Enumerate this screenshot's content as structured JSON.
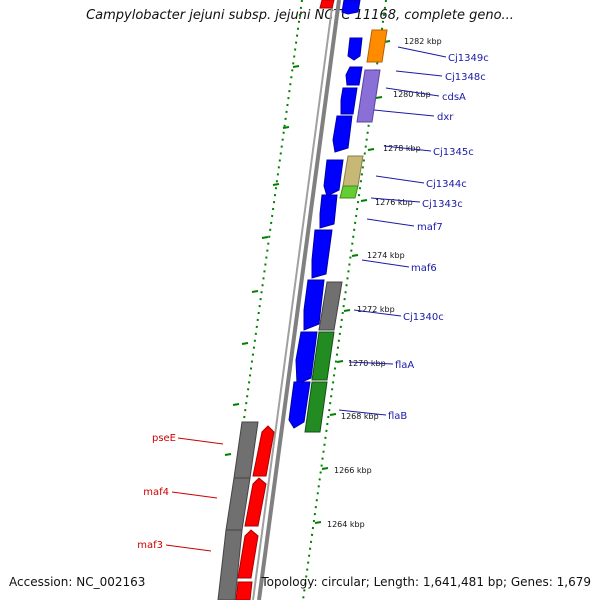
{
  "title": "Campylobacter jejuni subsp. jejuni NCTC 11168, complete geno...",
  "footer": {
    "accession": "Accession: NC_002163",
    "topology": "Topology: circular; Length: 1,641,481 bp; Genes: 1,679"
  },
  "colors": {
    "background": "#ffffff",
    "backbone": "#808080",
    "tick": "#008000",
    "gene_label_blue": "#1a1aa6",
    "gene_label_red": "#cc0000",
    "cds_blue": "#0000ff",
    "cds_red": "#ff0000",
    "orange": "#ff8c00",
    "purple": "#8a6fd6",
    "khaki": "#c8b878",
    "lightgreen": "#66cc33",
    "gray": "#707070",
    "green": "#228b22"
  },
  "kbp_markers": [
    "1282 kbp",
    "1280 kbp",
    "1278 kbp",
    "1276 kbp",
    "1274 kbp",
    "1272 kbp",
    "1270 kbp",
    "1268 kbp",
    "1266 kbp",
    "1264 kbp"
  ],
  "genes_right": [
    "Cj1349c",
    "Cj1348c",
    "cdsA",
    "dxr",
    "Cj1345c",
    "Cj1344c",
    "Cj1343c",
    "maf7",
    "maf6",
    "Cj1340c",
    "flaA",
    "flaB"
  ],
  "genes_left": [
    "pseE",
    "maf4",
    "maf3"
  ]
}
